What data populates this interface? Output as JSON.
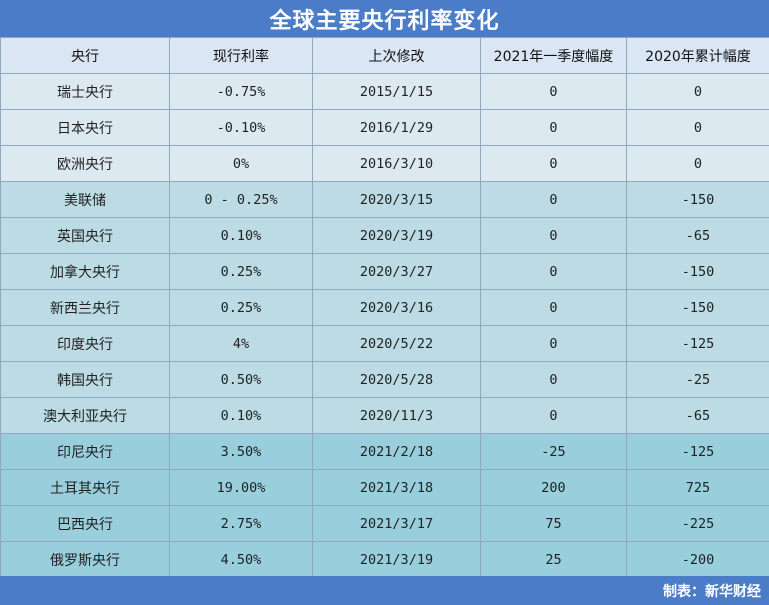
{
  "title": "全球主要央行利率变化",
  "headers": [
    "央行",
    "现行利率",
    "上次修改",
    "2021年一季度幅度",
    "2020年累计幅度"
  ],
  "rows": [
    {
      "bank": "瑞士央行",
      "rate": "-0.75%",
      "last": "2015/1/15",
      "q1": "0",
      "y2020": "0"
    },
    {
      "bank": "日本央行",
      "rate": "-0.10%",
      "last": "2016/1/29",
      "q1": "0",
      "y2020": "0"
    },
    {
      "bank": "欧洲央行",
      "rate": "0%",
      "last": "2016/3/10",
      "q1": "0",
      "y2020": "0"
    },
    {
      "bank": "美联储",
      "rate": "0 - 0.25%",
      "last": "2020/3/15",
      "q1": "0",
      "y2020": "-150"
    },
    {
      "bank": "英国央行",
      "rate": "0.10%",
      "last": "2020/3/19",
      "q1": "0",
      "y2020": "-65"
    },
    {
      "bank": "加拿大央行",
      "rate": "0.25%",
      "last": "2020/3/27",
      "q1": "0",
      "y2020": "-150"
    },
    {
      "bank": "新西兰央行",
      "rate": "0.25%",
      "last": "2020/3/16",
      "q1": "0",
      "y2020": "-150"
    },
    {
      "bank": "印度央行",
      "rate": "4%",
      "last": "2020/5/22",
      "q1": "0",
      "y2020": "-125"
    },
    {
      "bank": "韩国央行",
      "rate": "0.50%",
      "last": "2020/5/28",
      "q1": "0",
      "y2020": "-25"
    },
    {
      "bank": "澳大利亚央行",
      "rate": "0.10%",
      "last": "2020/11/3",
      "q1": "0",
      "y2020": "-65"
    },
    {
      "bank": "印尼央行",
      "rate": "3.50%",
      "last": "2021/2/18",
      "q1": "-25",
      "y2020": "-125"
    },
    {
      "bank": "土耳其央行",
      "rate": "19.00%",
      "last": "2021/3/18",
      "q1": "200",
      "y2020": "725"
    },
    {
      "bank": "巴西央行",
      "rate": "2.75%",
      "last": "2021/3/17",
      "q1": "75",
      "y2020": "-225"
    },
    {
      "bank": "俄罗斯央行",
      "rate": "4.50%",
      "last": "2021/3/19",
      "q1": "25",
      "y2020": "-200"
    }
  ],
  "footer": "制表：新华财经"
}
